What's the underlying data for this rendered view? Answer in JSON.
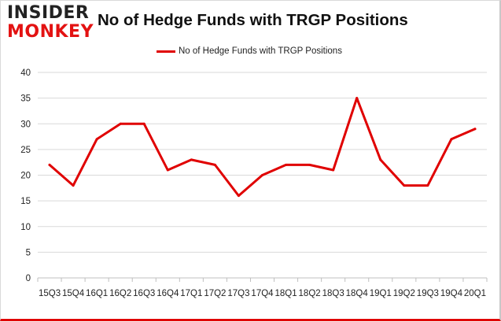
{
  "logo": {
    "line1": "INSIDER",
    "line2": "MONKEY"
  },
  "chart_data": {
    "type": "line",
    "title": "No of Hedge Funds with TRGP Positions",
    "categories": [
      "15Q3",
      "15Q4",
      "16Q1",
      "16Q2",
      "16Q3",
      "16Q4",
      "17Q1",
      "17Q2",
      "17Q3",
      "17Q4",
      "18Q1",
      "18Q2",
      "18Q3",
      "18Q4",
      "19Q1",
      "19Q2",
      "19Q3",
      "19Q4",
      "20Q1"
    ],
    "series": [
      {
        "name": "No of Hedge Funds with TRGP Positions",
        "color": "#e00000",
        "values": [
          22,
          18,
          27,
          30,
          30,
          21,
          23,
          22,
          16,
          20,
          22,
          22,
          21,
          35,
          23,
          18,
          18,
          27,
          29
        ]
      }
    ],
    "ylim": [
      0,
      40
    ],
    "yticks": [
      0,
      5,
      10,
      15,
      20,
      25,
      30,
      35,
      40
    ],
    "xlabel": "",
    "ylabel": "",
    "grid": true,
    "legend_position": "top-center"
  }
}
